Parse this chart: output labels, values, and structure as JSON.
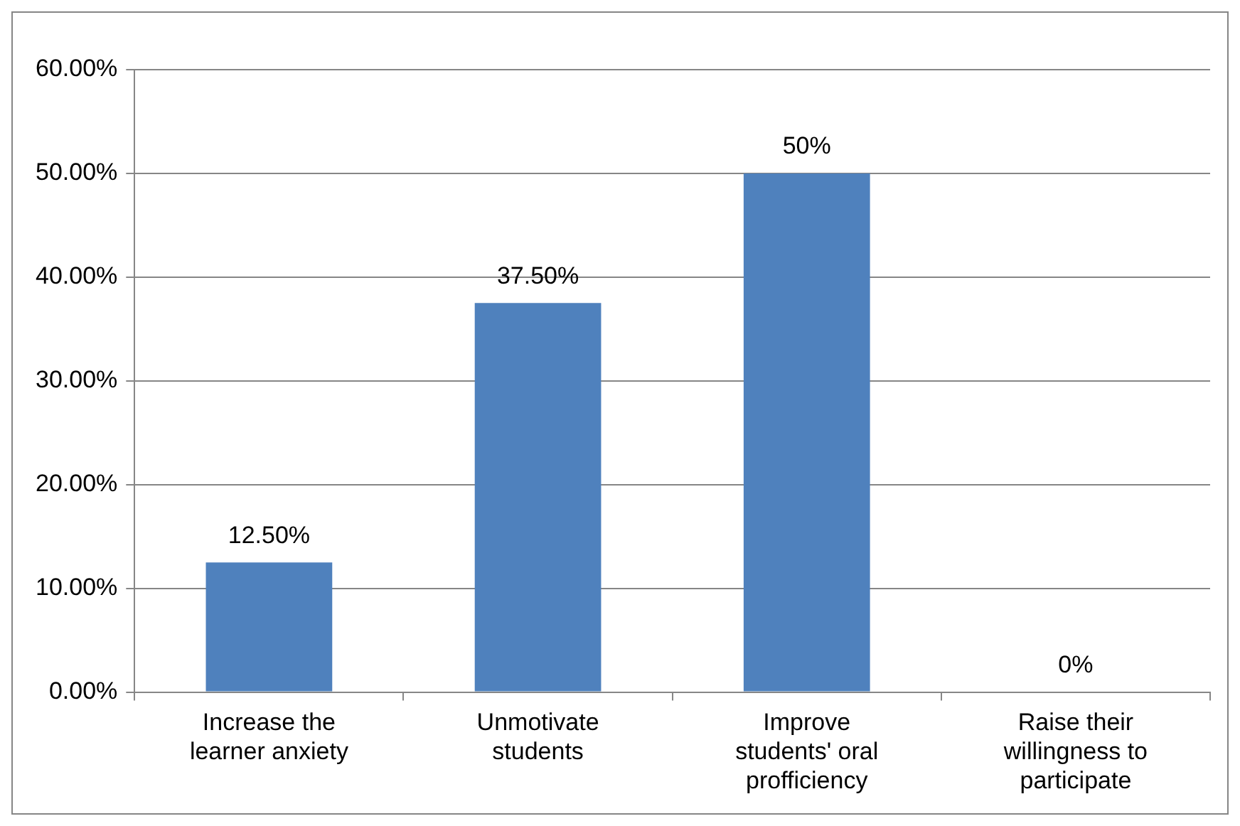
{
  "chart_data": {
    "type": "bar",
    "categories": [
      "Increase the learner anxiety",
      "Unmotivate students",
      "Improve students' oral profficiency",
      "Raise their willingness to participate"
    ],
    "values": [
      12.5,
      37.5,
      50,
      0
    ],
    "value_labels": [
      "12.50%",
      "37.50%",
      "50%",
      "0%"
    ],
    "color": "#4f81bd",
    "ylim": [
      0,
      60
    ],
    "yticks": [
      {
        "value": 0,
        "label": "0.00%"
      },
      {
        "value": 10,
        "label": "10.00%"
      },
      {
        "value": 20,
        "label": "20.00%"
      },
      {
        "value": 30,
        "label": "30.00%"
      },
      {
        "value": 40,
        "label": "40.00%"
      },
      {
        "value": 50,
        "label": "50.00%"
      },
      {
        "value": 60,
        "label": "60.00%"
      }
    ],
    "grid": "y",
    "legend": false
  }
}
